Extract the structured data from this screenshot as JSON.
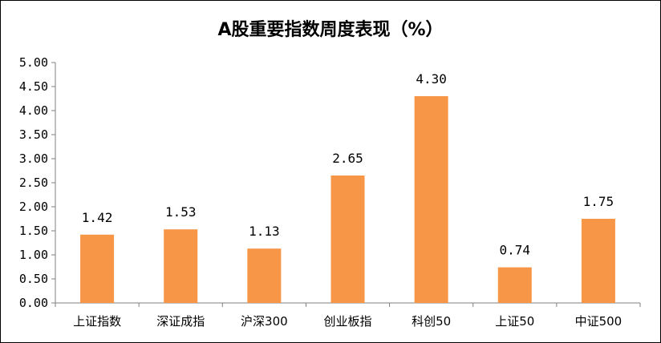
{
  "chart_data": {
    "type": "bar",
    "title": "A股重要指数周度表现（%）",
    "categories": [
      "上证指数",
      "深证成指",
      "沪深300",
      "创业板指",
      "科创50",
      "上证50",
      "中证500"
    ],
    "values": [
      1.42,
      1.53,
      1.13,
      2.65,
      4.3,
      0.74,
      1.75
    ],
    "data_labels": [
      "1.42",
      "1.53",
      "1.13",
      "2.65",
      "4.30",
      "0.74",
      "1.75"
    ],
    "y_ticks": [
      "0.00",
      "0.50",
      "1.00",
      "1.50",
      "2.00",
      "2.50",
      "3.00",
      "3.50",
      "4.00",
      "4.50",
      "5.00"
    ],
    "ylim": [
      0,
      5
    ],
    "xlabel": "",
    "ylabel": "",
    "grid": false,
    "legend": "none",
    "bar_color": "#F79646"
  }
}
